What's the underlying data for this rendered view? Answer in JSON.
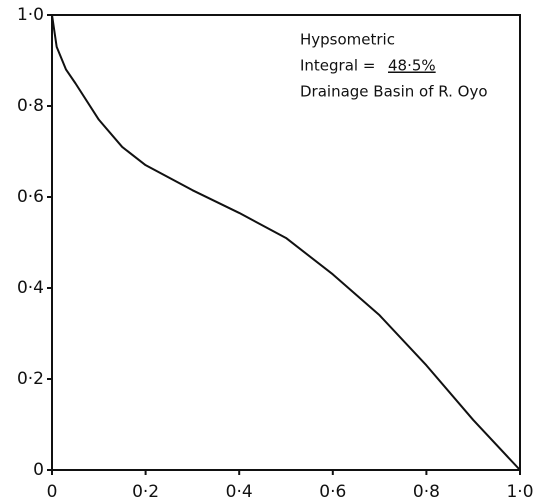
{
  "chart_data": {
    "type": "line",
    "annotations": [
      "Hypsometric",
      "Integral =",
      "48·5%",
      "Drainage Basin of R. Oyo"
    ],
    "x": [
      0,
      0.01,
      0.03,
      0.05,
      0.1,
      0.15,
      0.2,
      0.3,
      0.4,
      0.5,
      0.6,
      0.7,
      0.8,
      0.9,
      1.0
    ],
    "series": [
      {
        "color": "#111111",
        "values": [
          1.0,
          0.93,
          0.88,
          0.85,
          0.77,
          0.71,
          0.67,
          0.615,
          0.565,
          0.51,
          0.43,
          0.34,
          0.23,
          0.11,
          0.0
        ]
      }
    ],
    "xlim": [
      0,
      1.0
    ],
    "ylim": [
      0,
      1.0
    ],
    "xticks": [
      0,
      {
        "value": 0.2,
        "label": "0·2"
      },
      {
        "value": 0.4,
        "label": "0·4"
      },
      {
        "value": 0.6,
        "label": "0·6"
      },
      {
        "value": 0.8,
        "label": "0·8"
      },
      {
        "value": 1.0,
        "label": "1·0"
      }
    ],
    "yticks": [
      0,
      {
        "value": 0.2,
        "label": "0·2"
      },
      {
        "value": 0.4,
        "label": "0·4"
      },
      {
        "value": 0.6,
        "label": "0·6"
      },
      {
        "value": 0.8,
        "label": "0·8"
      },
      {
        "value": 1.0,
        "label": "1·0"
      }
    ]
  }
}
